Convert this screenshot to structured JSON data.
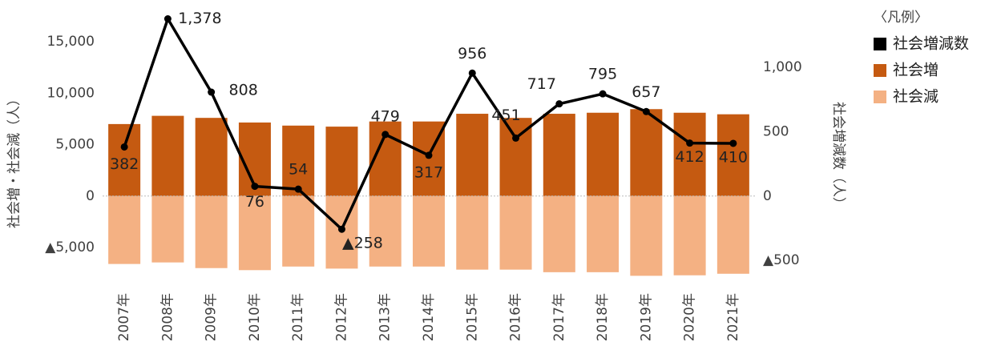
{
  "chart_data": {
    "type": "bar_line",
    "categories": [
      "2007年",
      "2008年",
      "2009年",
      "2010年",
      "2011年",
      "2012年",
      "2013年",
      "2014年",
      "2015年",
      "2016年",
      "2017年",
      "2018年",
      "2019年",
      "2020年",
      "2021年"
    ],
    "series": [
      {
        "name": "社会増減数",
        "color": "#000000",
        "type": "line",
        "axis": "y2",
        "values": [
          382,
          1378,
          808,
          76,
          54,
          -258,
          479,
          317,
          956,
          451,
          717,
          795,
          657,
          412,
          410
        ],
        "value_labels": [
          "382",
          "1,378",
          "808",
          "76",
          "54",
          "▲258",
          "479",
          "317",
          "956",
          "451",
          "717",
          "795",
          "657",
          "412",
          "410"
        ]
      },
      {
        "name": "社会増",
        "color": "#c55a11",
        "type": "bar",
        "values": [
          7000,
          7800,
          7600,
          7150,
          6850,
          6750,
          7250,
          7250,
          8000,
          7600,
          8000,
          8100,
          8450,
          8100,
          7950
        ]
      },
      {
        "name": "社会減",
        "color": "#f4b183",
        "type": "bar",
        "values": [
          -6600,
          -6450,
          -7000,
          -7200,
          -6850,
          -7050,
          -6850,
          -6850,
          -7150,
          -7150,
          -7400,
          -7400,
          -7750,
          -7700,
          -7550
        ]
      }
    ],
    "legend_title": "〈凡例〉",
    "ylabel": "社会増・社会減（人）",
    "y2label": "社会増減数（人）",
    "ylim": [
      -8500,
      17500
    ],
    "yticks": [
      {
        "value": 15000,
        "label": "15,000"
      },
      {
        "value": 10000,
        "label": "10,000"
      },
      {
        "value": 5000,
        "label": "5,000"
      },
      0,
      {
        "value": -5000,
        "label": "▲5,000"
      }
    ],
    "y2lim": [
      -680,
      1400
    ],
    "y2ticks": [
      {
        "value": 1000,
        "label": "1,000"
      },
      500,
      0,
      {
        "value": -500,
        "label": "▲500"
      }
    ]
  }
}
